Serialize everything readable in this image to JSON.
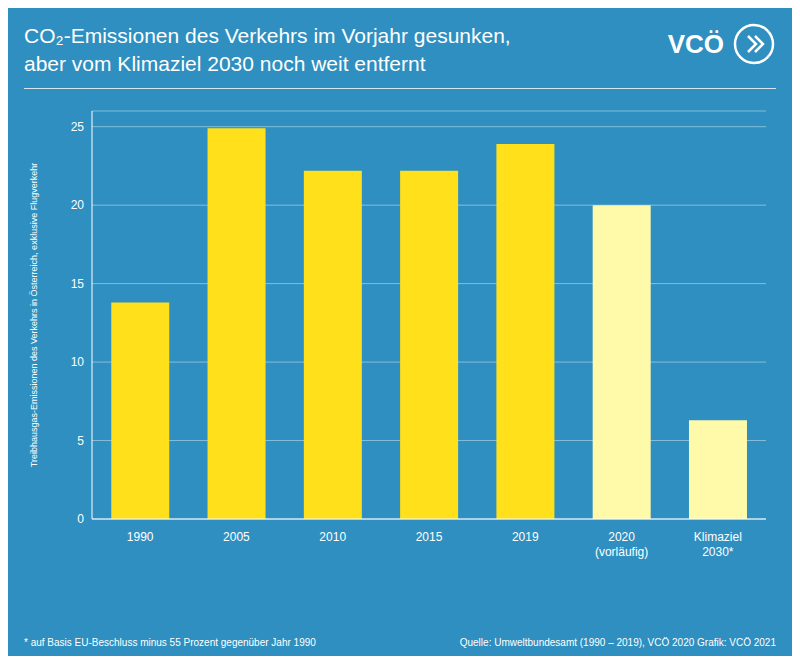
{
  "chart_data": {
    "type": "bar",
    "title": "CO₂-Emissionen des Verkehrs im Vorjahr gesunken,\naber vom Klimaziel 2030 noch weit entfernt",
    "ylabel": "Treibhausgas-Emissionen des Verkehrs in Österreich, exklusive Flugverkehr",
    "categories": [
      "1990",
      "2005",
      "2010",
      "2015",
      "2019",
      "2020\n(vorläufig)",
      "Klimaziel\n2030*"
    ],
    "values": [
      13.8,
      24.9,
      22.2,
      22.2,
      23.9,
      20.0,
      6.3
    ],
    "colors": [
      "#FFE01B",
      "#FFE01B",
      "#FFE01B",
      "#FFE01B",
      "#FFE01B",
      "#FFFAAA",
      "#FFFAAA"
    ],
    "ylim": [
      0,
      26
    ],
    "yticks": [
      0,
      5,
      10,
      15,
      20,
      25
    ],
    "grid": true,
    "annotations": [
      "* auf Basis EU-Beschluss minus 55 Prozent gegenüber Jahr 1990",
      "Quelle: Umweltbundesamt (1990 – 2019), VCÖ 2020 Grafik: VCÖ 2021",
      "VCÖ"
    ]
  }
}
